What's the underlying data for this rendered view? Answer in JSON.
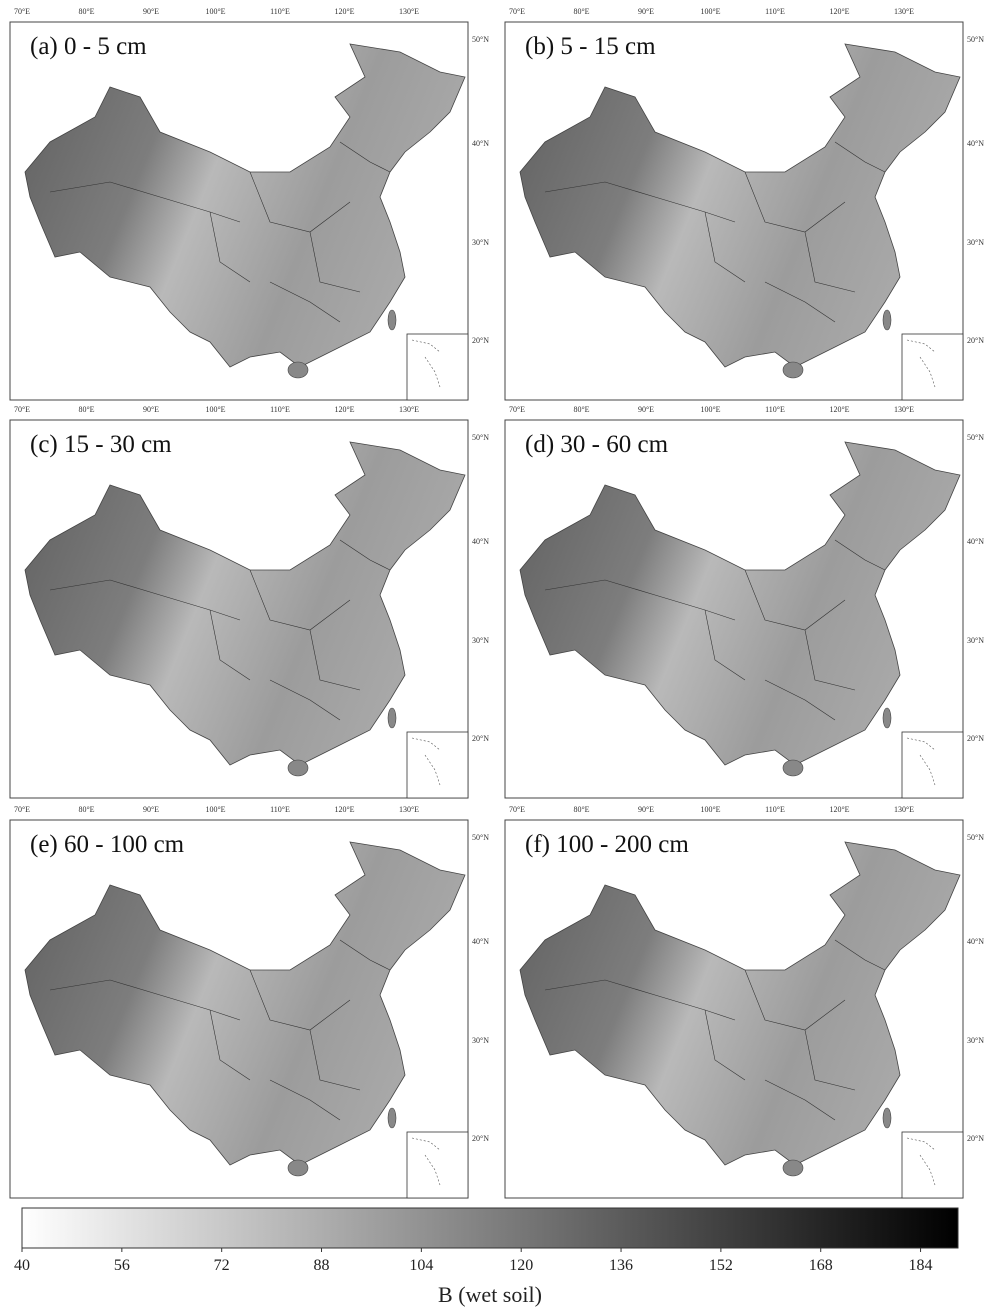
{
  "panels": [
    {
      "label": "(a) 0 - 5 cm"
    },
    {
      "label": "(b) 5 - 15 cm"
    },
    {
      "label": "(c) 15 - 30 cm"
    },
    {
      "label": "(d) 30 - 60 cm"
    },
    {
      "label": "(e) 60 - 100 cm"
    },
    {
      "label": "(f) 100 - 200 cm"
    }
  ],
  "lon_labels": [
    "70°E",
    "80°E",
    "90°E",
    "100°E",
    "110°E",
    "120°E",
    "130°E"
  ],
  "lat_labels": [
    "50°N",
    "40°N",
    "30°N",
    "20°N"
  ],
  "colorbar": {
    "lim": [
      40,
      190
    ],
    "ticks": [
      40,
      56,
      72,
      88,
      104,
      120,
      136,
      152,
      168,
      184
    ],
    "label": "B (wet soil)"
  }
}
